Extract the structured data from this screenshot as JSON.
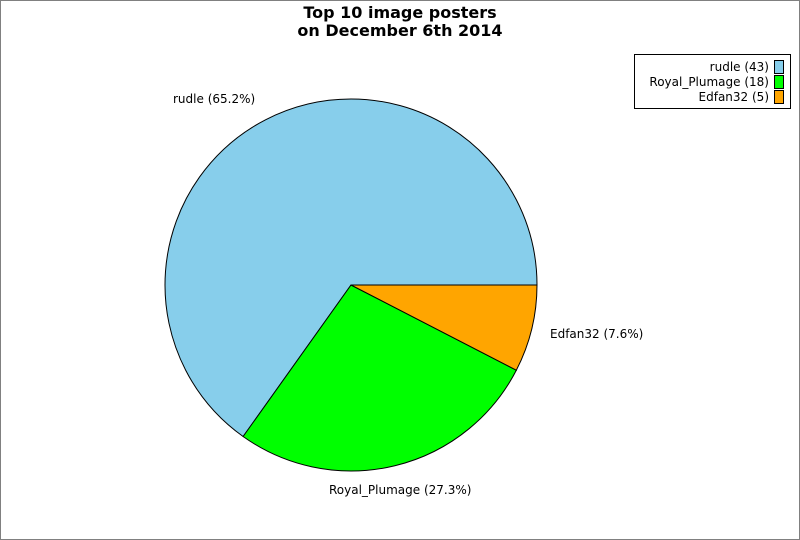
{
  "title_lines": [
    "Top 10 image posters",
    "on December 6th 2014"
  ],
  "chart_data": {
    "type": "pie",
    "title": "Top 10 image posters on December 6th 2014",
    "slices": [
      {
        "name": "rudle",
        "value": 43,
        "percent_label": "rudle (65.2%)",
        "legend_label": "rudle (43)",
        "color": "#87ceeb"
      },
      {
        "name": "Royal_Plumage",
        "value": 18,
        "percent_label": "Royal_Plumage (27.3%)",
        "legend_label": "Royal_Plumage (18)",
        "color": "#00ff00"
      },
      {
        "name": "Edfan32",
        "value": 5,
        "percent_label": "Edfan32 (7.6%)",
        "legend_label": "Edfan32 (5)",
        "color": "#ffa500"
      }
    ],
    "legend_position": "top-right"
  }
}
